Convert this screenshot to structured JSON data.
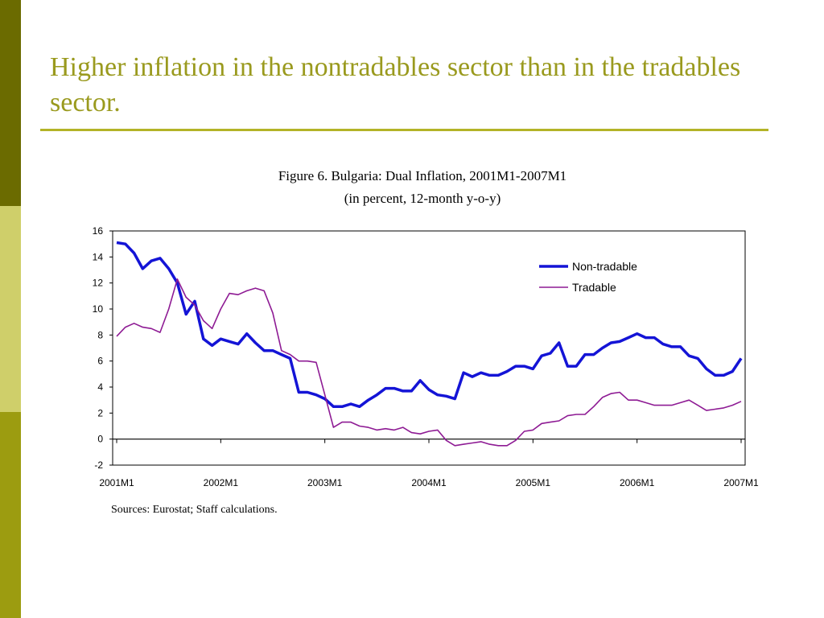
{
  "slide": {
    "title": "Higher inflation in the nontradables sector than in the tradables sector.",
    "colors": {
      "title": "#9a9a1e",
      "rule": "#b3b327",
      "strip_top": "#6b6b00",
      "strip_mid": "#cfcf6a",
      "strip_bot": "#9c9c10"
    }
  },
  "figure": {
    "title": "Figure 6. Bulgaria: Dual Inflation, 2001M1-2007M1",
    "subtitle": "(in percent, 12-month y-o-y)",
    "source": "Sources: Eurostat; Staff calculations."
  },
  "chart_data": {
    "type": "line",
    "x_start": "2001M1",
    "x_end": "2007M1",
    "x_ticks": [
      "2001M1",
      "2002M1",
      "2003M1",
      "2004M1",
      "2005M1",
      "2006M1",
      "2007M1"
    ],
    "ylim": [
      -2,
      16
    ],
    "y_ticks": [
      -2,
      0,
      2,
      4,
      6,
      8,
      10,
      12,
      14,
      16
    ],
    "legend_position": "top-right",
    "grid": false,
    "series": [
      {
        "name": "Non-tradable",
        "color": "#1414d6",
        "values": [
          15.1,
          15.0,
          14.3,
          13.1,
          13.7,
          13.9,
          13.1,
          12.0,
          9.6,
          10.6,
          7.7,
          7.2,
          7.7,
          7.5,
          7.3,
          8.1,
          7.4,
          6.8,
          6.8,
          6.5,
          6.2,
          3.6,
          3.6,
          3.4,
          3.1,
          2.5,
          2.5,
          2.7,
          2.5,
          3.0,
          3.4,
          3.9,
          3.9,
          3.7,
          3.7,
          4.5,
          3.8,
          3.4,
          3.3,
          3.1,
          5.1,
          4.8,
          5.1,
          4.9,
          4.9,
          5.2,
          5.6,
          5.6,
          5.4,
          6.4,
          6.6,
          7.4,
          5.6,
          5.6,
          6.5,
          6.5,
          7.0,
          7.4,
          7.5,
          7.8,
          8.1,
          7.8,
          7.8,
          7.3,
          7.1,
          7.1,
          6.4,
          6.2,
          5.4,
          4.9,
          4.9,
          5.2,
          6.2
        ]
      },
      {
        "name": "Tradable",
        "color": "#8e1b94",
        "values": [
          7.9,
          8.6,
          8.9,
          8.6,
          8.5,
          8.2,
          10.0,
          12.3,
          10.9,
          10.3,
          9.1,
          8.5,
          10.0,
          11.2,
          11.1,
          11.4,
          11.6,
          11.4,
          9.7,
          6.8,
          6.5,
          6.0,
          6.0,
          5.9,
          3.4,
          0.9,
          1.3,
          1.3,
          1.0,
          0.9,
          0.7,
          0.8,
          0.7,
          0.9,
          0.5,
          0.4,
          0.6,
          0.7,
          -0.1,
          -0.5,
          -0.4,
          -0.3,
          -0.2,
          -0.4,
          -0.5,
          -0.5,
          -0.1,
          0.6,
          0.7,
          1.2,
          1.3,
          1.4,
          1.8,
          1.9,
          1.9,
          2.5,
          3.2,
          3.5,
          3.6,
          3.0,
          3.0,
          2.8,
          2.6,
          2.6,
          2.6,
          2.8,
          3.0,
          2.6,
          2.2,
          2.3,
          2.4,
          2.6,
          2.9
        ]
      }
    ]
  }
}
